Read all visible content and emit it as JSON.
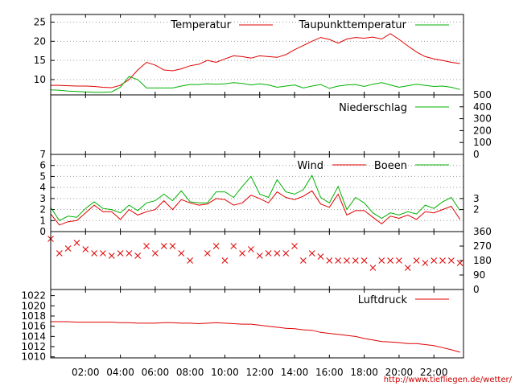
{
  "footer_url": "http://www.tiefliegen.de/wetter/",
  "colors": {
    "red": "#e00000",
    "green": "#00b000",
    "grid": "#999999"
  },
  "x_ticks": [
    "02:00",
    "04:00",
    "06:00",
    "08:00",
    "10:00",
    "12:00",
    "14:00",
    "16:00",
    "18:00",
    "20:00",
    "22:00"
  ],
  "chart_data": [
    {
      "type": "line",
      "panel": "temperature",
      "x": [
        0,
        0.5,
        1,
        1.5,
        2,
        2.5,
        3,
        3.5,
        4,
        4.5,
        5,
        5.5,
        6,
        6.5,
        7,
        7.5,
        8,
        8.5,
        9,
        9.5,
        10,
        10.5,
        11,
        11.5,
        12,
        12.5,
        13,
        13.5,
        14,
        14.5,
        15,
        15.5,
        16,
        16.5,
        17,
        17.5,
        18,
        18.5,
        19,
        19.5,
        20,
        20.5,
        21,
        21.5,
        22,
        22.5,
        23,
        23.5
      ],
      "series": [
        {
          "name": "Temperatur",
          "color": "#e00000",
          "values": [
            8.5,
            8.5,
            8.4,
            8.3,
            8.3,
            8.2,
            8,
            7.9,
            8.5,
            10,
            12.5,
            14.5,
            13.8,
            12.5,
            12.3,
            12.8,
            13.6,
            14,
            15,
            14.5,
            15.4,
            16.2,
            16,
            15.6,
            16.2,
            16,
            15.8,
            16.5,
            17.8,
            18.9,
            20,
            21,
            20.5,
            19.5,
            20.6,
            21,
            20.8,
            21.1,
            20.6,
            22,
            20.5,
            18.8,
            17.2,
            16,
            15.4,
            15,
            14.5,
            14.2
          ]
        },
        {
          "name": "Taupunkttemperatur",
          "color": "#00b000",
          "values": [
            7.3,
            7.2,
            7,
            6.9,
            6.8,
            6.7,
            6.7,
            6.8,
            8,
            10.8,
            10,
            7.8,
            7.8,
            7.8,
            7.8,
            8.3,
            8.7,
            8.7,
            8.9,
            8.8,
            8.9,
            9.2,
            9,
            8.6,
            8.9,
            8.6,
            8,
            8.3,
            8.6,
            7.8,
            8.3,
            8.7,
            7.7,
            8.3,
            8.6,
            8.7,
            8.2,
            8.8,
            9.2,
            8.6,
            8,
            8.4,
            8.8,
            8.5,
            8.2,
            8.3,
            8,
            7.4
          ]
        }
      ],
      "ylim": [
        6,
        27
      ],
      "yticks": [
        10,
        15,
        20,
        25
      ]
    },
    {
      "type": "line",
      "panel": "precipitation",
      "series": [
        {
          "name": "Niederschlag",
          "color": "#00b000",
          "values": [
            0,
            0
          ]
        }
      ],
      "x": [
        0,
        23.5
      ],
      "ylim": [
        0,
        500
      ],
      "yticks": [
        0,
        100,
        200,
        300,
        400,
        500
      ]
    },
    {
      "type": "line",
      "panel": "wind",
      "x": [
        0,
        0.5,
        1,
        1.5,
        2,
        2.5,
        3,
        3.5,
        4,
        4.5,
        5,
        5.5,
        6,
        6.5,
        7,
        7.5,
        8,
        8.5,
        9,
        9.5,
        10,
        10.5,
        11,
        11.5,
        12,
        12.5,
        13,
        13.5,
        14,
        14.5,
        15,
        15.5,
        16,
        16.5,
        17,
        17.5,
        18,
        18.5,
        19,
        19.5,
        20,
        20.5,
        21,
        21.5,
        22,
        22.5,
        23,
        23.5
      ],
      "series": [
        {
          "name": "Wind",
          "color": "#e00000",
          "values": [
            1.6,
            0.6,
            0.9,
            1,
            1.7,
            2.4,
            1.8,
            1.8,
            1.1,
            2,
            1.5,
            1.8,
            2,
            2.8,
            2,
            2.9,
            2.6,
            2.4,
            2.5,
            3,
            2.9,
            2.4,
            2.6,
            3.3,
            3,
            2.6,
            3.6,
            3.1,
            2.9,
            3.2,
            3.7,
            2.5,
            2.2,
            3.4,
            1.5,
            1.9,
            1.9,
            1.3,
            0.7,
            1.4,
            1.2,
            1.5,
            1.1,
            1.8,
            1.7,
            2,
            2.3,
            1.1
          ]
        },
        {
          "name": "Boeen",
          "color": "#00b000",
          "values": [
            2.2,
            1,
            1.4,
            1.3,
            2.1,
            2.7,
            2.1,
            2,
            1.7,
            2.4,
            1.9,
            2.6,
            2.8,
            3.4,
            2.8,
            3.7,
            2.7,
            2.6,
            2.6,
            3.6,
            3.6,
            3.1,
            4.1,
            5,
            3.4,
            3.1,
            4.7,
            3.6,
            3.4,
            3.8,
            5.1,
            3.1,
            2.6,
            4.1,
            2,
            3.1,
            2.6,
            1.7,
            1.2,
            1.7,
            1.5,
            1.8,
            1.6,
            2.4,
            2.1,
            2.7,
            3.1,
            1.9
          ]
        }
      ],
      "ylim": [
        0,
        7
      ],
      "yticks": [
        0,
        1,
        2,
        3,
        4,
        5,
        6,
        7
      ],
      "y2ticks": [
        2,
        3
      ]
    },
    {
      "type": "scatter",
      "panel": "direction",
      "x": [
        0,
        0.5,
        1,
        1.5,
        2,
        2.5,
        3,
        3.5,
        4,
        4.5,
        5,
        5.5,
        6,
        6.5,
        7,
        7.5,
        8,
        8.5,
        9,
        9.5,
        10,
        10.5,
        11,
        11.5,
        12,
        12.5,
        13,
        13.5,
        14,
        14.5,
        15,
        15.5,
        16,
        16.5,
        17,
        17.5,
        18,
        18.5,
        19,
        19.5,
        20,
        20.5,
        21,
        21.5,
        22,
        22.5,
        23,
        23.5
      ],
      "series": [
        {
          "name": "",
          "color": "#e00000",
          "values": [
            315,
            225,
            255,
            290,
            250,
            225,
            225,
            210,
            225,
            225,
            210,
            270,
            225,
            270,
            270,
            225,
            180,
            "",
            225,
            270,
            180,
            270,
            225,
            250,
            210,
            225,
            225,
            225,
            270,
            180,
            225,
            205,
            180,
            180,
            180,
            180,
            180,
            135,
            180,
            180,
            180,
            135,
            180,
            165,
            180,
            180,
            180,
            165
          ]
        }
      ],
      "ylim": [
        0,
        360
      ],
      "y2ticks": [
        0,
        90,
        180,
        270,
        360
      ]
    },
    {
      "type": "line",
      "panel": "pressure",
      "x": [
        0,
        0.5,
        1,
        1.5,
        2,
        2.5,
        3,
        3.5,
        4,
        4.5,
        5,
        5.5,
        6,
        6.5,
        7,
        7.5,
        8,
        8.5,
        9,
        9.5,
        10,
        10.5,
        11,
        11.5,
        12,
        12.5,
        13,
        13.5,
        14,
        14.5,
        15,
        15.5,
        16,
        16.5,
        17,
        17.5,
        18,
        18.5,
        19,
        19.5,
        20,
        20.5,
        21,
        21.5,
        22,
        22.5,
        23,
        23.5
      ],
      "series": [
        {
          "name": "Luftdruck",
          "color": "#e00000",
          "values": [
            1016.9,
            1016.9,
            1016.9,
            1016.8,
            1016.8,
            1016.8,
            1016.8,
            1016.8,
            1016.7,
            1016.7,
            1016.6,
            1016.6,
            1016.6,
            1016.7,
            1016.7,
            1016.6,
            1016.6,
            1016.5,
            1016.6,
            1016.7,
            1016.6,
            1016.5,
            1016.4,
            1016.4,
            1016.2,
            1016,
            1015.8,
            1015.6,
            1015.5,
            1015.3,
            1015.2,
            1014.8,
            1014.6,
            1014.4,
            1014.2,
            1014,
            1013.6,
            1013.3,
            1013,
            1012.9,
            1012.8,
            1012.6,
            1012.6,
            1012.4,
            1012.2,
            1011.8,
            1011.4,
            1010.9
          ]
        }
      ],
      "ylim": [
        1009.8,
        1023.2
      ],
      "yticks": [
        1010,
        1012,
        1014,
        1016,
        1018,
        1020,
        1022
      ]
    }
  ]
}
